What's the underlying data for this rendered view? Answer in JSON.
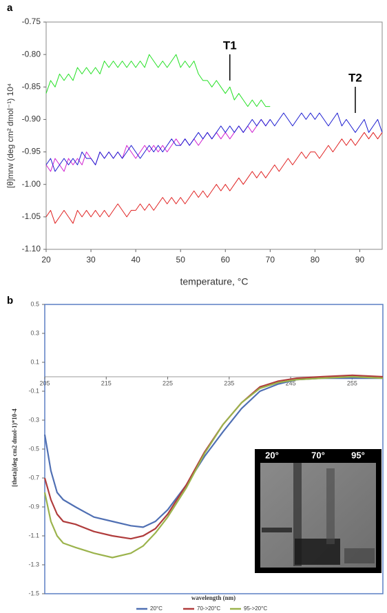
{
  "chart_data": [
    {
      "type": "line",
      "panel_label": "a",
      "xlabel": "temperature, °C",
      "ylabel": "[θ]mrw (deg cm² dmol⁻¹) 10⁴",
      "x": [
        20,
        21,
        22,
        23,
        24,
        25,
        26,
        27,
        28,
        29,
        30,
        31,
        32,
        33,
        34,
        35,
        36,
        37,
        38,
        39,
        40,
        41,
        42,
        43,
        44,
        45,
        46,
        47,
        48,
        49,
        50,
        51,
        52,
        53,
        54,
        55,
        56,
        57,
        58,
        59,
        60,
        61,
        62,
        63,
        64,
        65,
        66,
        67,
        68,
        69,
        70,
        71,
        72,
        73,
        74,
        75,
        76,
        77,
        78,
        79,
        80,
        81,
        82,
        83,
        84,
        85,
        86,
        87,
        88,
        89,
        90,
        91,
        92,
        93,
        94,
        95
      ],
      "xlim": [
        20,
        95
      ],
      "xticks": [
        20,
        30,
        40,
        50,
        60,
        70,
        80,
        90
      ],
      "ylim": [
        -1.1,
        -0.75
      ],
      "yticks": [
        -0.75,
        {
          "value": -0.8,
          "label": "-0.80"
        },
        -0.85,
        {
          "value": -0.9,
          "label": "-0.90"
        },
        -0.95,
        {
          "value": -1,
          "label": "-1.00"
        },
        -1.05,
        {
          "value": -1.1,
          "label": "-1.10"
        }
      ],
      "grid": false,
      "series": [
        {
          "color": "#22e022",
          "values": [
            -0.86,
            -0.84,
            -0.85,
            -0.83,
            -0.84,
            -0.83,
            -0.84,
            -0.82,
            -0.83,
            -0.82,
            -0.83,
            -0.82,
            -0.83,
            -0.81,
            -0.82,
            -0.81,
            -0.82,
            -0.81,
            -0.82,
            -0.81,
            -0.82,
            -0.81,
            -0.82,
            -0.8,
            -0.81,
            -0.82,
            -0.81,
            -0.82,
            -0.81,
            -0.8,
            -0.82,
            -0.81,
            -0.82,
            -0.81,
            -0.83,
            -0.84,
            -0.84,
            -0.85,
            -0.84,
            -0.85,
            -0.86,
            -0.85,
            -0.87,
            -0.86,
            -0.87,
            -0.88,
            -0.87,
            -0.88,
            -0.87,
            -0.88,
            -0.88,
            null,
            null,
            null,
            null,
            null,
            null,
            null,
            null,
            null,
            null,
            null,
            null,
            null,
            null,
            null,
            null,
            null,
            null,
            null,
            null,
            null,
            null,
            null,
            null,
            null
          ]
        },
        {
          "color": "#d020d0",
          "values": [
            -0.97,
            -0.98,
            -0.96,
            -0.97,
            -0.98,
            -0.96,
            -0.97,
            -0.96,
            -0.97,
            -0.95,
            -0.96,
            -0.97,
            -0.95,
            -0.96,
            -0.95,
            -0.96,
            -0.95,
            -0.96,
            -0.94,
            -0.95,
            -0.96,
            -0.95,
            -0.94,
            -0.95,
            -0.94,
            -0.95,
            -0.94,
            -0.95,
            -0.94,
            -0.93,
            -0.94,
            -0.93,
            -0.94,
            -0.93,
            -0.94,
            -0.93,
            -0.92,
            -0.93,
            -0.92,
            -0.93,
            -0.92,
            -0.93,
            -0.92,
            -0.91,
            -0.92,
            -0.91,
            -0.92,
            -0.91,
            -0.9,
            -0.91,
            -0.9,
            null,
            null,
            null,
            null,
            null,
            null,
            null,
            null,
            null,
            null,
            null,
            null,
            null,
            null,
            null,
            null,
            null,
            null,
            null,
            null,
            null,
            null,
            null,
            null,
            null
          ]
        },
        {
          "color": "#1a1ad0",
          "values": [
            -0.97,
            -0.96,
            -0.98,
            -0.97,
            -0.96,
            -0.97,
            -0.96,
            -0.97,
            -0.95,
            -0.96,
            -0.96,
            -0.97,
            -0.95,
            -0.96,
            -0.95,
            -0.96,
            -0.95,
            -0.96,
            -0.95,
            -0.94,
            -0.95,
            -0.96,
            -0.95,
            -0.94,
            -0.95,
            -0.94,
            -0.95,
            -0.94,
            -0.93,
            -0.94,
            -0.94,
            -0.93,
            -0.94,
            -0.93,
            -0.92,
            -0.93,
            -0.92,
            -0.93,
            -0.92,
            -0.91,
            -0.92,
            -0.91,
            -0.92,
            -0.91,
            -0.92,
            -0.91,
            -0.9,
            -0.91,
            -0.9,
            -0.91,
            -0.9,
            -0.91,
            -0.9,
            -0.89,
            -0.9,
            -0.91,
            -0.9,
            -0.89,
            -0.9,
            -0.89,
            -0.9,
            -0.89,
            -0.9,
            -0.91,
            -0.9,
            -0.89,
            -0.91,
            -0.9,
            -0.91,
            -0.92,
            -0.91,
            -0.9,
            -0.92,
            -0.91,
            -0.9,
            -0.92
          ]
        },
        {
          "color": "#e02020",
          "values": [
            -1.05,
            -1.04,
            -1.06,
            -1.05,
            -1.04,
            -1.05,
            -1.06,
            -1.04,
            -1.05,
            -1.04,
            -1.05,
            -1.04,
            -1.05,
            -1.04,
            -1.05,
            -1.04,
            -1.03,
            -1.04,
            -1.05,
            -1.04,
            -1.04,
            -1.03,
            -1.04,
            -1.03,
            -1.04,
            -1.03,
            -1.02,
            -1.03,
            -1.02,
            -1.03,
            -1.02,
            -1.03,
            -1.02,
            -1.01,
            -1.02,
            -1.01,
            -1.02,
            -1.01,
            -1,
            -1.01,
            -1,
            -1.01,
            -1,
            -0.99,
            -1,
            -0.99,
            -0.98,
            -0.99,
            -0.98,
            -0.99,
            -0.98,
            -0.97,
            -0.98,
            -0.97,
            -0.96,
            -0.97,
            -0.96,
            -0.95,
            -0.96,
            -0.95,
            -0.95,
            -0.96,
            -0.95,
            -0.94,
            -0.95,
            -0.94,
            -0.93,
            -0.94,
            -0.93,
            -0.94,
            -0.93,
            -0.92,
            -0.93,
            -0.92,
            -0.93,
            -0.92
          ]
        }
      ],
      "annotations": [
        {
          "text": "T1",
          "x": 61,
          "y": -0.84
        },
        {
          "text": "T2",
          "x": 89,
          "y": -0.89
        }
      ]
    },
    {
      "type": "line",
      "panel_label": "b",
      "xlabel": "wavelength (nm)",
      "ylabel": "[theta](deg cm2 dmol-1)*10-4",
      "x": [
        205,
        206,
        207,
        208,
        210,
        213,
        216,
        219,
        221,
        223,
        225,
        228,
        231,
        234,
        237,
        240,
        243,
        246,
        250,
        255,
        260
      ],
      "xlim": [
        205,
        260
      ],
      "xticks": [
        205,
        215,
        225,
        235,
        245,
        255
      ],
      "ylim": [
        -1.5,
        0.5
      ],
      "yticks": [
        0.5,
        0.3,
        0.1,
        -0.1,
        -0.3,
        -0.5,
        -0.7,
        -0.9,
        -1.1,
        -1.3,
        -1.5
      ],
      "legend": "bottom",
      "series": [
        {
          "name": "20°C",
          "color": "#4f6fb3",
          "values": [
            -0.4,
            -0.65,
            -0.8,
            -0.85,
            -0.9,
            -0.97,
            -1,
            -1.03,
            -1.04,
            -1,
            -0.92,
            -0.75,
            -0.55,
            -0.38,
            -0.22,
            -0.1,
            -0.05,
            -0.02,
            -0.01,
            -0.01,
            -0.01
          ]
        },
        {
          "name": "70->20°C",
          "color": "#b03c3c",
          "values": [
            -0.7,
            -0.85,
            -0.95,
            -1,
            -1.02,
            -1.07,
            -1.1,
            -1.12,
            -1.1,
            -1.05,
            -0.95,
            -0.75,
            -0.52,
            -0.33,
            -0.18,
            -0.07,
            -0.03,
            -0.01,
            0,
            0.01,
            0
          ]
        },
        {
          "name": "95->20°C",
          "color": "#9bb34c",
          "values": [
            -0.8,
            -1,
            -1.1,
            -1.15,
            -1.18,
            -1.22,
            -1.25,
            -1.22,
            -1.17,
            -1.08,
            -0.97,
            -0.77,
            -0.53,
            -0.33,
            -0.18,
            -0.08,
            -0.04,
            -0.02,
            -0.01,
            0,
            -0.01
          ]
        }
      ],
      "annotations": [
        "20°",
        "70°",
        "95°"
      ]
    }
  ]
}
